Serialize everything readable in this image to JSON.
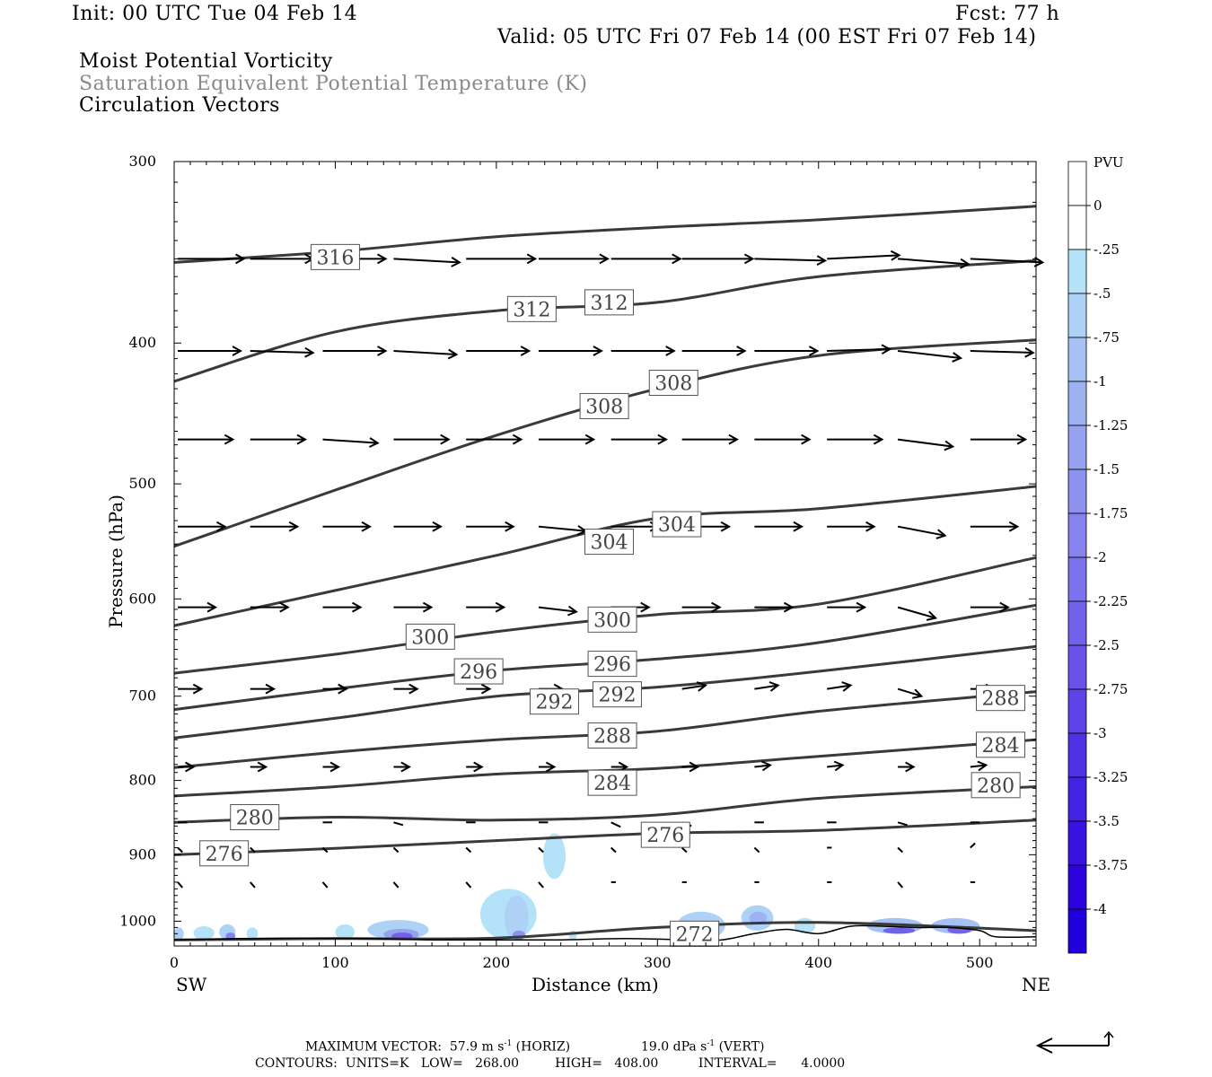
{
  "header": {
    "init": "Init: 00 UTC Tue 04 Feb 14",
    "fcst": "Fcst:   77 h",
    "valid": "Valid: 05 UTC Fri 07 Feb 14 (00 EST Fri 07 Feb 14)",
    "line1": "Moist Potential Vorticity",
    "line2": "Saturation Equivalent Potential Temperature (K)",
    "line3": "Circulation Vectors"
  },
  "axes": {
    "ylabel": "Pressure (hPa)",
    "xlabel": "Distance (km)",
    "left_end": "SW",
    "right_end": "NE"
  },
  "footer": {
    "max_vector_label": "MAXIMUM VECTOR:",
    "max_vector_horiz": "57.9 m s",
    "horiz_tag": "(HORIZ)",
    "max_vector_vert": "19.0 dPa s",
    "vert_tag": "(VERT)",
    "exponent": "-1",
    "contours": "CONTOURS:  UNITS=K   LOW=   268.00         HIGH=   408.00          INTERVAL=      4.0000"
  },
  "colorbar": {
    "unit": "PVU",
    "labels": [
      "0",
      "-.25",
      "-.5",
      "-.75",
      "-1",
      "-1.25",
      "-1.5",
      "-1.75",
      "-2",
      "-2.25",
      "-2.5",
      "-2.75",
      "-3",
      "-3.25",
      "-3.5",
      "-3.75",
      "-4"
    ],
    "colors": [
      "#ffffff",
      "#ffffff",
      "#b4e2f8",
      "#aed2f6",
      "#a6c2f4",
      "#9eb2f2",
      "#96a2f0",
      "#8e92ef",
      "#8682ee",
      "#7c72ec",
      "#7262ea",
      "#6852e8",
      "#5c42e7",
      "#5032e5",
      "#4422e3",
      "#3812e1",
      "#2c02df",
      "#2000dd"
    ]
  },
  "chart_data": {
    "type": "cross-section",
    "xlim": [
      0,
      535
    ],
    "ylim_hpa": [
      300,
      1040
    ],
    "y_scale": "log",
    "x_ticks": [
      0,
      100,
      200,
      300,
      400,
      500
    ],
    "y_ticks": [
      300,
      400,
      500,
      600,
      700,
      800,
      900,
      1000
    ],
    "isentropes": [
      {
        "theta": 316,
        "x": [
          0,
          100,
          200,
          300,
          400,
          535
        ],
        "p": [
          352,
          346,
          338,
          333,
          329,
          322
        ]
      },
      {
        "theta": 312,
        "x": [
          0,
          100,
          200,
          300,
          400,
          535
        ],
        "p": [
          425,
          393,
          380,
          375,
          360,
          351
        ]
      },
      {
        "theta": 308,
        "x": [
          0,
          100,
          200,
          300,
          400,
          535
        ],
        "p": [
          552,
          505,
          463,
          430,
          408,
          398
        ]
      },
      {
        "theta": 304,
        "x": [
          0,
          100,
          200,
          300,
          400,
          535
        ],
        "p": [
          626,
          592,
          560,
          528,
          520,
          502
        ]
      },
      {
        "theta": 300,
        "x": [
          0,
          100,
          200,
          300,
          400,
          535
        ],
        "p": [
          675,
          655,
          632,
          615,
          605,
          562
        ]
      },
      {
        "theta": 296,
        "x": [
          0,
          100,
          200,
          300,
          400,
          535
        ],
        "p": [
          715,
          692,
          672,
          660,
          643,
          606
        ]
      },
      {
        "theta": 292,
        "x": [
          0,
          100,
          200,
          300,
          400,
          535
        ],
        "p": [
          748,
          725,
          700,
          690,
          673,
          647
        ]
      },
      {
        "theta": 288,
        "x": [
          0,
          100,
          200,
          300,
          400,
          535
        ],
        "p": [
          784,
          765,
          750,
          740,
          717,
          695
        ]
      },
      {
        "theta": 284,
        "x": [
          0,
          100,
          200,
          300,
          400,
          535
        ],
        "p": [
          820,
          808,
          792,
          785,
          770,
          750
        ]
      },
      {
        "theta": 280,
        "x": [
          0,
          100,
          200,
          300,
          400,
          535
        ],
        "p": [
          855,
          848,
          852,
          845,
          823,
          808
        ]
      },
      {
        "theta": 276,
        "x": [
          0,
          100,
          200,
          300,
          400,
          535
        ],
        "p": [
          900,
          891,
          880,
          870,
          866,
          852
        ]
      },
      {
        "theta": 272,
        "x": [
          0,
          100,
          200,
          300,
          400,
          535
        ],
        "p": [
          1030,
          1028,
          1027,
          1010,
          1002,
          1015
        ]
      }
    ],
    "contour_labels": [
      {
        "text": "316",
        "x": 100,
        "p": 349
      },
      {
        "text": "312",
        "x": 222,
        "p": 379
      },
      {
        "text": "312",
        "x": 270,
        "p": 375
      },
      {
        "text": "308",
        "x": 267,
        "p": 442
      },
      {
        "text": "308",
        "x": 310,
        "p": 426
      },
      {
        "text": "304",
        "x": 270,
        "p": 548
      },
      {
        "text": "304",
        "x": 312,
        "p": 533
      },
      {
        "text": "300",
        "x": 159,
        "p": 637
      },
      {
        "text": "300",
        "x": 272,
        "p": 620
      },
      {
        "text": "296",
        "x": 189,
        "p": 673
      },
      {
        "text": "296",
        "x": 272,
        "p": 665
      },
      {
        "text": "292",
        "x": 236,
        "p": 706
      },
      {
        "text": "292",
        "x": 275,
        "p": 698
      },
      {
        "text": "288",
        "x": 272,
        "p": 745
      },
      {
        "text": "288",
        "x": 513,
        "p": 702
      },
      {
        "text": "284",
        "x": 272,
        "p": 803
      },
      {
        "text": "284",
        "x": 513,
        "p": 756
      },
      {
        "text": "280",
        "x": 50,
        "p": 848
      },
      {
        "text": "280",
        "x": 510,
        "p": 806
      },
      {
        "text": "276",
        "x": 305,
        "p": 872
      },
      {
        "text": "276",
        "x": 31,
        "p": 898
      },
      {
        "text": "272",
        "x": 323,
        "p": 1020
      }
    ],
    "vector_levels": [
      {
        "p": 350,
        "x": [
          0,
          45,
          90,
          134,
          179,
          224,
          269,
          313,
          358,
          403,
          447,
          492
        ],
        "u": [
          42,
          40,
          40,
          42,
          44,
          44,
          44,
          45,
          45,
          46,
          45,
          46
        ],
        "w": [
          0,
          0,
          0,
          -4,
          0,
          0,
          0,
          0,
          -2,
          4,
          -6,
          -4
        ]
      },
      {
        "p": 405,
        "x": [
          0,
          45,
          90,
          134,
          179,
          224,
          269,
          313,
          358,
          403,
          447,
          492
        ],
        "u": [
          40,
          40,
          40,
          40,
          40,
          40,
          40,
          40,
          40,
          40,
          40,
          40
        ],
        "w": [
          0,
          -2,
          0,
          -4,
          0,
          0,
          0,
          0,
          0,
          2,
          -8,
          -2
        ]
      },
      {
        "p": 466,
        "x": [
          0,
          45,
          90,
          134,
          179,
          224,
          269,
          313,
          358,
          403,
          447,
          492
        ],
        "u": [
          35,
          35,
          35,
          35,
          35,
          35,
          35,
          35,
          35,
          35,
          35,
          35
        ],
        "w": [
          0,
          0,
          -4,
          0,
          0,
          0,
          0,
          0,
          0,
          0,
          -8,
          0
        ]
      },
      {
        "p": 535,
        "x": [
          0,
          45,
          90,
          134,
          179,
          224,
          269,
          313,
          358,
          403,
          447,
          492
        ],
        "u": [
          30,
          30,
          30,
          30,
          30,
          30,
          30,
          30,
          30,
          30,
          30,
          30
        ],
        "w": [
          0,
          0,
          0,
          0,
          0,
          -5,
          0,
          0,
          0,
          0,
          -10,
          0
        ]
      },
      {
        "p": 608,
        "x": [
          0,
          45,
          90,
          134,
          179,
          224,
          269,
          313,
          358,
          403,
          447,
          492
        ],
        "u": [
          24,
          24,
          24,
          24,
          24,
          24,
          24,
          24,
          24,
          24,
          24,
          24
        ],
        "w": [
          0,
          0,
          0,
          0,
          0,
          -5,
          0,
          0,
          0,
          0,
          -12,
          0
        ]
      },
      {
        "p": 692,
        "x": [
          0,
          45,
          90,
          134,
          179,
          224,
          269,
          313,
          358,
          403,
          447,
          492
        ],
        "u": [
          15,
          15,
          15,
          15,
          15,
          15,
          15,
          15,
          15,
          15,
          15,
          15
        ],
        "w": [
          0,
          0,
          0,
          0,
          0,
          0,
          0,
          4,
          4,
          4,
          -8,
          0
        ]
      },
      {
        "p": 783,
        "x": [
          0,
          45,
          90,
          134,
          179,
          224,
          269,
          313,
          358,
          403,
          447,
          492
        ],
        "u": [
          10,
          10,
          10,
          10,
          10,
          10,
          10,
          10,
          10,
          10,
          10,
          10
        ],
        "w": [
          0,
          0,
          0,
          0,
          0,
          0,
          0,
          0,
          2,
          2,
          0,
          2
        ]
      },
      {
        "p": 855,
        "x": [
          0,
          45,
          90,
          134,
          179,
          224,
          269,
          313,
          358,
          403,
          447,
          492
        ],
        "u": [
          6,
          6,
          6,
          6,
          6,
          6,
          6,
          6,
          6,
          6,
          6,
          6
        ],
        "w": [
          0,
          0,
          0,
          -3,
          0,
          0,
          -5,
          -4,
          0,
          0,
          -3,
          0
        ]
      },
      {
        "p": 890,
        "x": [
          0,
          45,
          90,
          134,
          179,
          224,
          269,
          313,
          358,
          403,
          447,
          492
        ],
        "u": [
          3,
          3,
          3,
          3,
          3,
          3,
          3,
          3,
          3,
          3,
          3,
          3
        ],
        "w": [
          -5,
          -5,
          -5,
          -5,
          -5,
          -5,
          -5,
          -5,
          -5,
          0,
          -5,
          5
        ]
      },
      {
        "p": 940,
        "x": [
          0,
          45,
          90,
          134,
          179,
          224,
          269,
          313,
          358,
          403,
          447,
          492
        ],
        "u": [
          3,
          3,
          3,
          3,
          3,
          3,
          3,
          3,
          3,
          3,
          3,
          3
        ],
        "w": [
          -6,
          -6,
          -6,
          -6,
          -6,
          -6,
          0,
          0,
          0,
          0,
          -6,
          0
        ]
      }
    ],
    "mpv_patches": [
      {
        "x": [
          229,
          243
        ],
        "p": [
          870,
          935
        ],
        "level": 1
      },
      {
        "x": [
          190,
          225
        ],
        "p": [
          950,
          1030
        ],
        "level": 1
      },
      {
        "x": [
          205,
          220
        ],
        "p": [
          960,
          1030
        ],
        "level": 2
      },
      {
        "x": [
          210,
          218
        ],
        "p": [
          1015,
          1030
        ],
        "level": 6
      },
      {
        "x": [
          120,
          158
        ],
        "p": [
          998,
          1030
        ],
        "level": 2
      },
      {
        "x": [
          130,
          152
        ],
        "p": [
          1012,
          1030
        ],
        "level": 5
      },
      {
        "x": [
          135,
          148
        ],
        "p": [
          1018,
          1030
        ],
        "level": 9
      },
      {
        "x": [
          100,
          112
        ],
        "p": [
          1005,
          1030
        ],
        "level": 1
      },
      {
        "x": [
          0,
          6
        ],
        "p": [
          1010,
          1030
        ],
        "level": 2
      },
      {
        "x": [
          12,
          25
        ],
        "p": [
          1008,
          1030
        ],
        "level": 1
      },
      {
        "x": [
          28,
          38
        ],
        "p": [
          1005,
          1030
        ],
        "level": 2
      },
      {
        "x": [
          32,
          38
        ],
        "p": [
          1018,
          1030
        ],
        "level": 7
      },
      {
        "x": [
          45,
          52
        ],
        "p": [
          1010,
          1030
        ],
        "level": 1
      },
      {
        "x": [
          245,
          250
        ],
        "p": [
          1015,
          1030
        ],
        "level": 1
      },
      {
        "x": [
          312,
          342
        ],
        "p": [
          985,
          1030
        ],
        "level": 2
      },
      {
        "x": [
          318,
          336
        ],
        "p": [
          1000,
          1030
        ],
        "level": 5
      },
      {
        "x": [
          322,
          332
        ],
        "p": [
          1010,
          1030
        ],
        "level": 9
      },
      {
        "x": [
          352,
          372
        ],
        "p": [
          975,
          1015
        ],
        "level": 2
      },
      {
        "x": [
          357,
          368
        ],
        "p": [
          985,
          1005
        ],
        "level": 4
      },
      {
        "x": [
          385,
          398
        ],
        "p": [
          995,
          1020
        ],
        "level": 1
      },
      {
        "x": [
          430,
          465
        ],
        "p": [
          995,
          1020
        ],
        "level": 3
      },
      {
        "x": [
          440,
          460
        ],
        "p": [
          1010,
          1020
        ],
        "level": 9
      },
      {
        "x": [
          470,
          500
        ],
        "p": [
          995,
          1020
        ],
        "level": 3
      },
      {
        "x": [
          480,
          495
        ],
        "p": [
          1008,
          1020
        ],
        "level": 9
      }
    ],
    "terrain": {
      "x": [
        0,
        40,
        80,
        120,
        160,
        200,
        240,
        280,
        320,
        340,
        360,
        380,
        400,
        420,
        440,
        460,
        480,
        500,
        510,
        535
      ],
      "p": [
        1030,
        1028,
        1027,
        1028,
        1030,
        1030,
        1030,
        1028,
        1030,
        1030,
        1020,
        1013,
        1020,
        1008,
        1008,
        1010,
        1010,
        1015,
        1025,
        1025
      ]
    }
  }
}
